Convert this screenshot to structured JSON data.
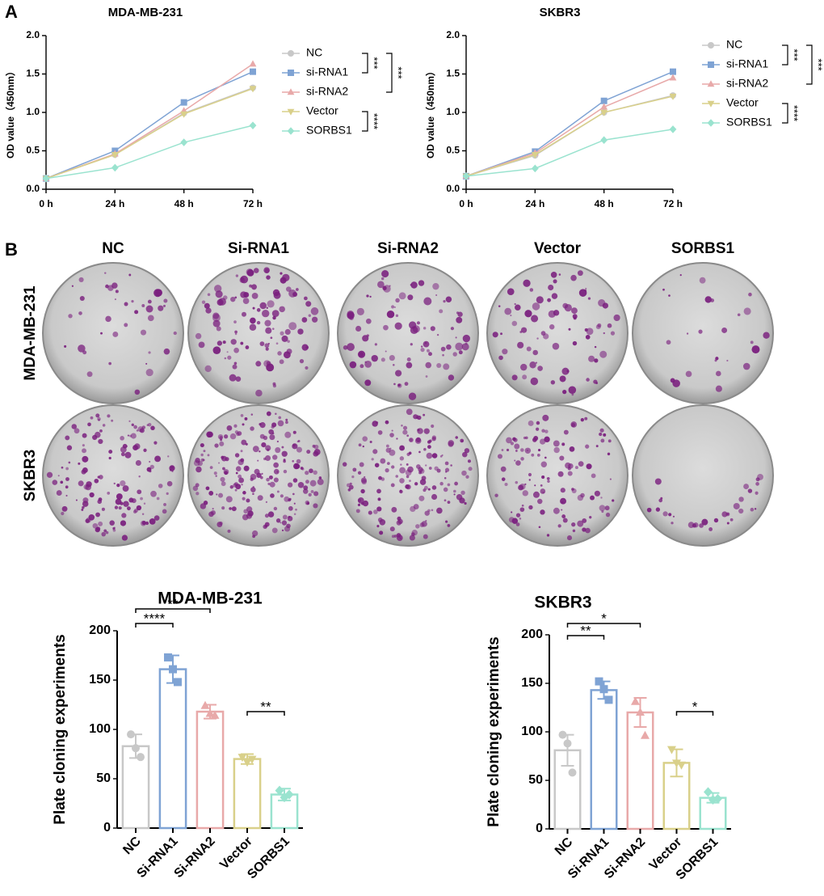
{
  "panel_labels": [
    "A",
    "B"
  ],
  "plates": {
    "columns": [
      "NC",
      "Si-RNA1",
      "Si-RNA2",
      "Vector",
      "SORBS1"
    ],
    "rows": [
      "MDA-MB-231",
      "SKBR3"
    ]
  },
  "chart_data": [
    {
      "type": "line",
      "title": "MDA-MB-231",
      "y_label": "OD value（450nm）",
      "categories": [
        "0 h",
        "24 h",
        "48 h",
        "72 h"
      ],
      "ylim": [
        0,
        2
      ],
      "yticks": [
        {
          "value": 0,
          "label": "0.0"
        },
        0.5,
        {
          "value": 1,
          "label": "1.0"
        },
        1.5,
        {
          "value": 2,
          "label": "2.0"
        }
      ],
      "series": [
        {
          "name": "NC",
          "color": "#c8c8c8",
          "marker": "circle",
          "values": [
            0.14,
            0.45,
            0.99,
            1.32
          ]
        },
        {
          "name": "si-RNA1",
          "color": "#7fa3d4",
          "marker": "square",
          "values": [
            0.14,
            0.5,
            1.13,
            1.53
          ]
        },
        {
          "name": "si-RNA2",
          "color": "#e8a9a9",
          "marker": "triangle",
          "values": [
            0.14,
            0.46,
            1.02,
            1.63
          ]
        },
        {
          "name": "Vector",
          "color": "#d9d08a",
          "marker": "triangle-down",
          "values": [
            0.14,
            0.45,
            0.98,
            1.31
          ]
        },
        {
          "name": "SORBS1",
          "color": "#9ae3cf",
          "marker": "diamond",
          "values": [
            0.14,
            0.28,
            0.61,
            0.83
          ]
        }
      ],
      "annotations": [
        "***",
        "***",
        "****"
      ]
    },
    {
      "type": "line",
      "title": "SKBR3",
      "y_label": "OD value（450nm）",
      "categories": [
        "0 h",
        "24 h",
        "48 h",
        "72 h"
      ],
      "ylim": [
        0,
        2
      ],
      "yticks": [
        {
          "value": 0,
          "label": "0.0"
        },
        0.5,
        {
          "value": 1,
          "label": "1.0"
        },
        1.5,
        {
          "value": 2,
          "label": "2.0"
        }
      ],
      "series": [
        {
          "name": "NC",
          "color": "#c8c8c8",
          "marker": "circle",
          "values": [
            0.17,
            0.44,
            1.0,
            1.22
          ]
        },
        {
          "name": "si-RNA1",
          "color": "#7fa3d4",
          "marker": "square",
          "values": [
            0.17,
            0.49,
            1.15,
            1.53
          ]
        },
        {
          "name": "si-RNA2",
          "color": "#e8a9a9",
          "marker": "triangle",
          "values": [
            0.17,
            0.47,
            1.07,
            1.45
          ]
        },
        {
          "name": "Vector",
          "color": "#d9d08a",
          "marker": "triangle-down",
          "values": [
            0.17,
            0.45,
            1.0,
            1.21
          ]
        },
        {
          "name": "SORBS1",
          "color": "#9ae3cf",
          "marker": "diamond",
          "values": [
            0.17,
            0.27,
            0.64,
            0.78
          ]
        }
      ],
      "annotations": [
        "***",
        "***",
        "****"
      ]
    },
    {
      "type": "bar",
      "title": "MDA-MB-231",
      "y_label": "Plate cloning experiments",
      "categories": [
        "NC",
        "Si-RNA1",
        "Si-RNA2",
        "Vector",
        "SORBS1"
      ],
      "colors": [
        "#c8c8c8",
        "#7fa3d4",
        "#e8a9a9",
        "#d9d08a",
        "#9ae3cf"
      ],
      "markers": [
        "circle",
        "square",
        "triangle",
        "triangle-down",
        "diamond"
      ],
      "values": [
        83,
        161,
        118,
        70,
        34
      ],
      "errors": [
        12,
        14,
        7,
        5,
        6
      ],
      "points": [
        [
          95,
          81,
          72
        ],
        [
          173,
          161,
          148
        ],
        [
          124,
          116,
          114
        ],
        [
          72,
          67,
          70
        ],
        [
          38,
          31,
          34
        ]
      ],
      "ylim": [
        0,
        200
      ],
      "yticks": [
        0,
        50,
        100,
        150,
        200
      ],
      "annotations": [
        "****",
        "**",
        "**"
      ]
    },
    {
      "type": "bar",
      "title": "SKBR3",
      "y_label": "Plate cloning experiments",
      "categories": [
        "NC",
        "Si-RNA1",
        "Si-RNA2",
        "Vector",
        "SORBS1"
      ],
      "colors": [
        "#c8c8c8",
        "#7fa3d4",
        "#e8a9a9",
        "#d9d08a",
        "#9ae3cf"
      ],
      "markers": [
        "circle",
        "square",
        "triangle",
        "triangle-down",
        "diamond"
      ],
      "values": [
        81,
        143,
        120,
        68,
        32
      ],
      "errors": [
        16,
        9,
        15,
        14,
        5
      ],
      "points": [
        [
          97,
          88,
          58
        ],
        [
          152,
          144,
          133
        ],
        [
          131,
          120,
          96
        ],
        [
          82,
          68,
          66
        ],
        [
          38,
          30,
          31
        ]
      ],
      "ylim": [
        0,
        200
      ],
      "yticks": [
        0,
        50,
        100,
        150,
        200
      ],
      "annotations": [
        "**",
        "*",
        "*"
      ]
    }
  ]
}
